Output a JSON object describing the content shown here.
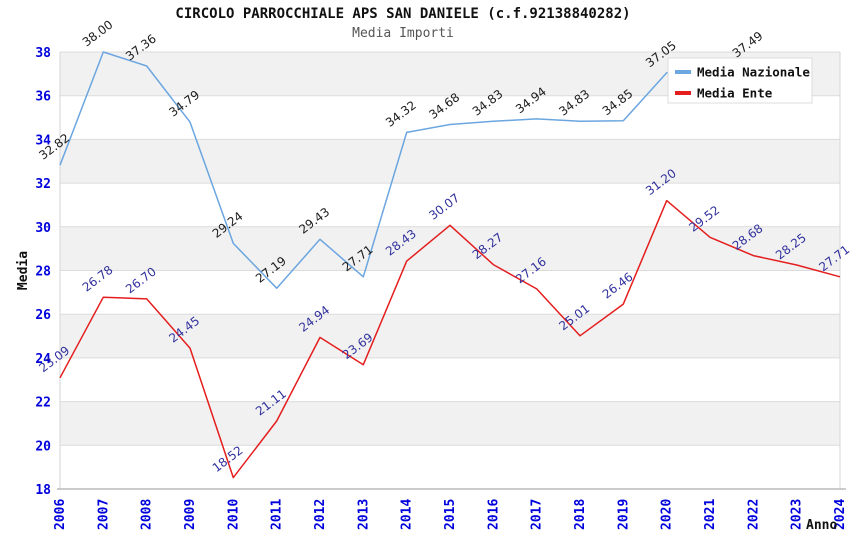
{
  "title": "CIRCOLO PARROCCHIALE APS SAN DANIELE (c.f.92138840282)",
  "subtitle": "Media Importi",
  "legend": {
    "items": [
      {
        "label": "Media Nazionale",
        "color": "#6ba6e0"
      },
      {
        "label": "Media Ente",
        "color": "#e41e1e"
      }
    ]
  },
  "colors": {
    "tick_label": "#0000dd",
    "grid_line": "#dcdcdc",
    "band_gray": "#f1f1f1",
    "axis_line": "#999999",
    "plot_edge": "#d6d6d6",
    "legend_border": "#dcdcdc",
    "legend_background": "#ffffff",
    "title": "#111111",
    "subtitle": "#555555"
  },
  "chart_data": {
    "type": "line",
    "title": "CIRCOLO PARROCCHIALE APS SAN DANIELE (c.f.92138840282)",
    "subtitle": "Media Importi",
    "xlabel": "Anno",
    "ylabel": "Media",
    "ylim": [
      18,
      38
    ],
    "ytick_step": 2,
    "grid": true,
    "alternating_bands": true,
    "legend_position": "top-right",
    "x": [
      2006,
      2007,
      2008,
      2009,
      2010,
      2011,
      2012,
      2013,
      2014,
      2015,
      2016,
      2017,
      2018,
      2019,
      2020,
      2021,
      2022,
      2023,
      2024
    ],
    "series": [
      {
        "name": "Media Nazionale",
        "color": "#6ba6e0",
        "label_color": "#1c1c1c",
        "values": [
          32.82,
          38.0,
          37.36,
          34.79,
          29.24,
          27.19,
          29.43,
          27.71,
          34.32,
          34.68,
          34.83,
          34.94,
          34.83,
          34.85,
          37.05,
          37.2,
          37.49,
          null,
          null
        ],
        "hidden_label_indexes": [
          15
        ]
      },
      {
        "name": "Media Ente",
        "color": "#e41e1e",
        "label_color": "#32329e",
        "values": [
          23.09,
          26.78,
          26.7,
          24.45,
          18.52,
          21.11,
          24.94,
          23.69,
          28.43,
          30.07,
          28.27,
          27.16,
          25.01,
          26.46,
          31.2,
          29.52,
          28.68,
          28.25,
          27.71
        ],
        "hidden_label_indexes": []
      }
    ]
  }
}
